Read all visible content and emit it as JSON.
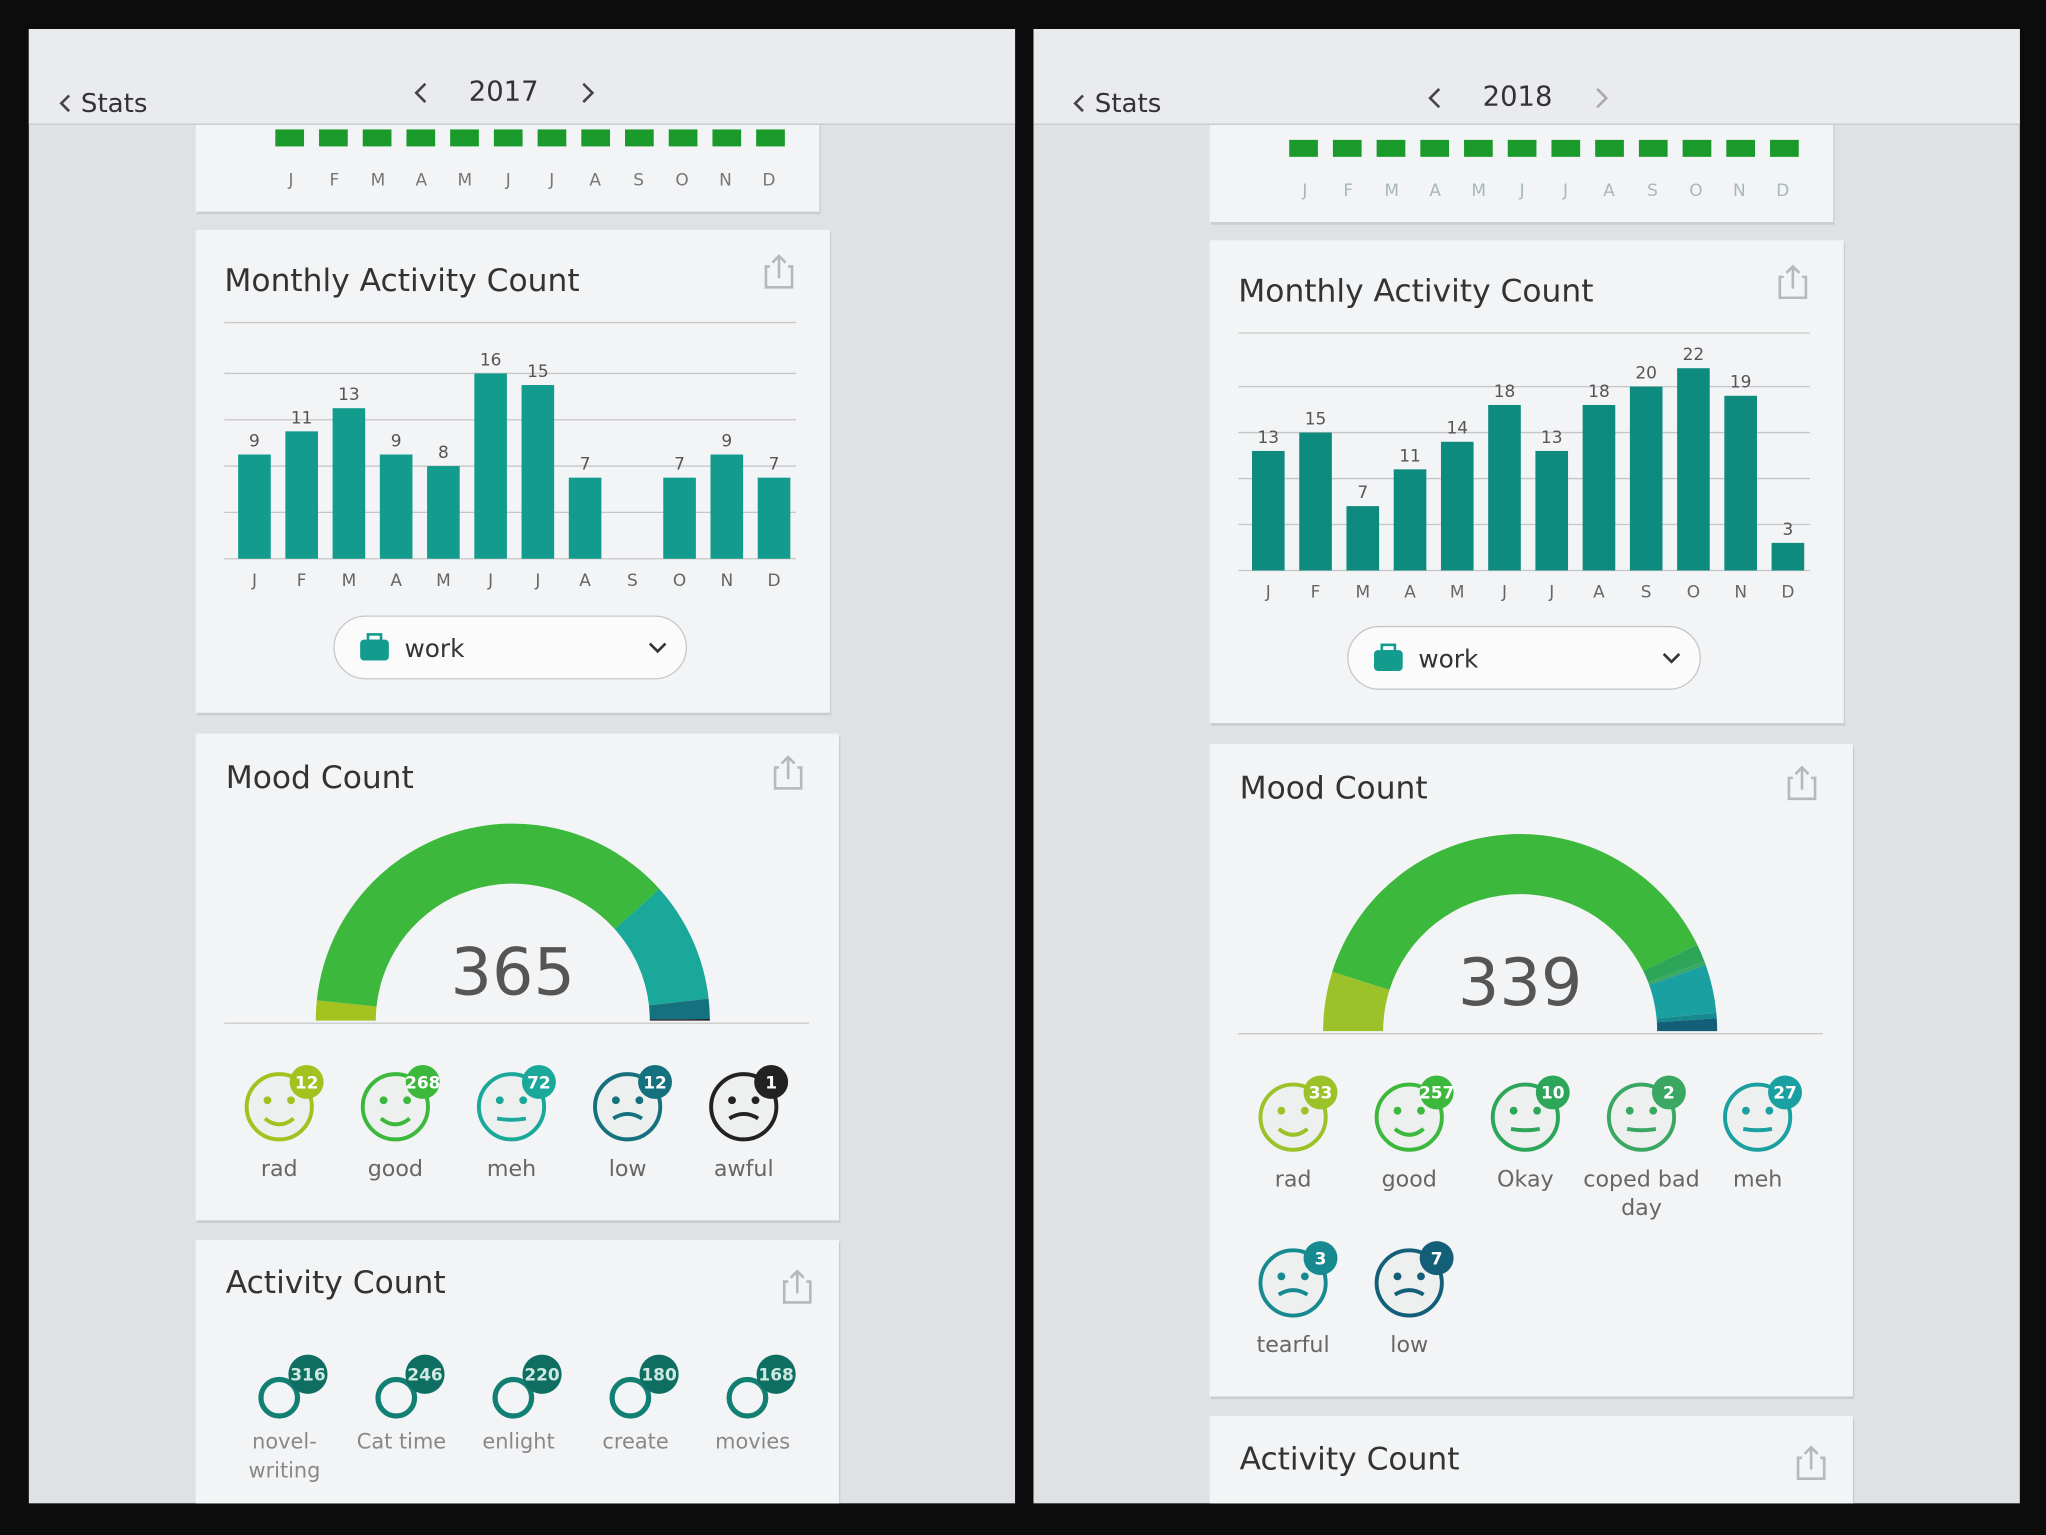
{
  "panels": [
    {
      "back": "Stats",
      "year": "2017",
      "month_strip": [
        "J",
        "F",
        "M",
        "A",
        "M",
        "J",
        "J",
        "A",
        "S",
        "O",
        "N",
        "D"
      ],
      "monthly_chart": {
        "type": "bar",
        "title": "Monthly Activity Count",
        "categories": [
          "J",
          "F",
          "M",
          "A",
          "M",
          "J",
          "J",
          "A",
          "S",
          "O",
          "N",
          "D"
        ],
        "values": [
          9,
          11,
          13,
          9,
          8,
          16,
          15,
          7,
          null,
          7,
          9,
          7
        ],
        "color": "#139c8e",
        "ylim": [
          0,
          16
        ],
        "yticks": [
          0,
          4,
          8,
          12,
          16
        ],
        "grid": true,
        "filter": "work"
      },
      "mood_chart": {
        "type": "gauge",
        "title": "Mood Count",
        "total": 365,
        "categories": [
          "rad",
          "good",
          "meh",
          "low",
          "awful"
        ],
        "values": [
          12,
          268,
          72,
          12,
          1
        ],
        "colors": [
          "#a3c220",
          "#3cb83c",
          "#1aa89a",
          "#15717e",
          "#222222"
        ]
      },
      "activity": {
        "title": "Activity Count",
        "items": [
          {
            "label": "novel-writing",
            "count": 316
          },
          {
            "label": "Cat time",
            "count": 246
          },
          {
            "label": "enlight",
            "count": 220
          },
          {
            "label": "create",
            "count": 180
          },
          {
            "label": "movies",
            "count": 168
          }
        ]
      }
    },
    {
      "back": "Stats",
      "year": "2018",
      "month_strip": [
        "J",
        "F",
        "M",
        "A",
        "M",
        "J",
        "J",
        "A",
        "S",
        "O",
        "N",
        "D"
      ],
      "monthly_chart": {
        "type": "bar",
        "title": "Monthly Activity Count",
        "categories": [
          "J",
          "F",
          "M",
          "A",
          "M",
          "J",
          "J",
          "A",
          "S",
          "O",
          "N",
          "D"
        ],
        "values": [
          13,
          15,
          7,
          11,
          14,
          18,
          13,
          18,
          20,
          22,
          19,
          3
        ],
        "color": "#0f8a7e",
        "ylim": [
          0,
          22
        ],
        "yticks": [
          0,
          5,
          10,
          15,
          20
        ],
        "grid": true,
        "filter": "work"
      },
      "mood_chart": {
        "type": "gauge",
        "title": "Mood Count",
        "total": 339,
        "categories": [
          "rad",
          "good",
          "Okay",
          "coped bad day",
          "meh",
          "tearful",
          "low"
        ],
        "values": [
          33,
          257,
          10,
          2,
          27,
          3,
          7
        ],
        "colors": [
          "#9cc22a",
          "#3cb83c",
          "#2ea65a",
          "#3aa862",
          "#1aa0a0",
          "#178a90",
          "#145f78"
        ]
      },
      "activity": {
        "title": "Activity Count"
      }
    }
  ]
}
